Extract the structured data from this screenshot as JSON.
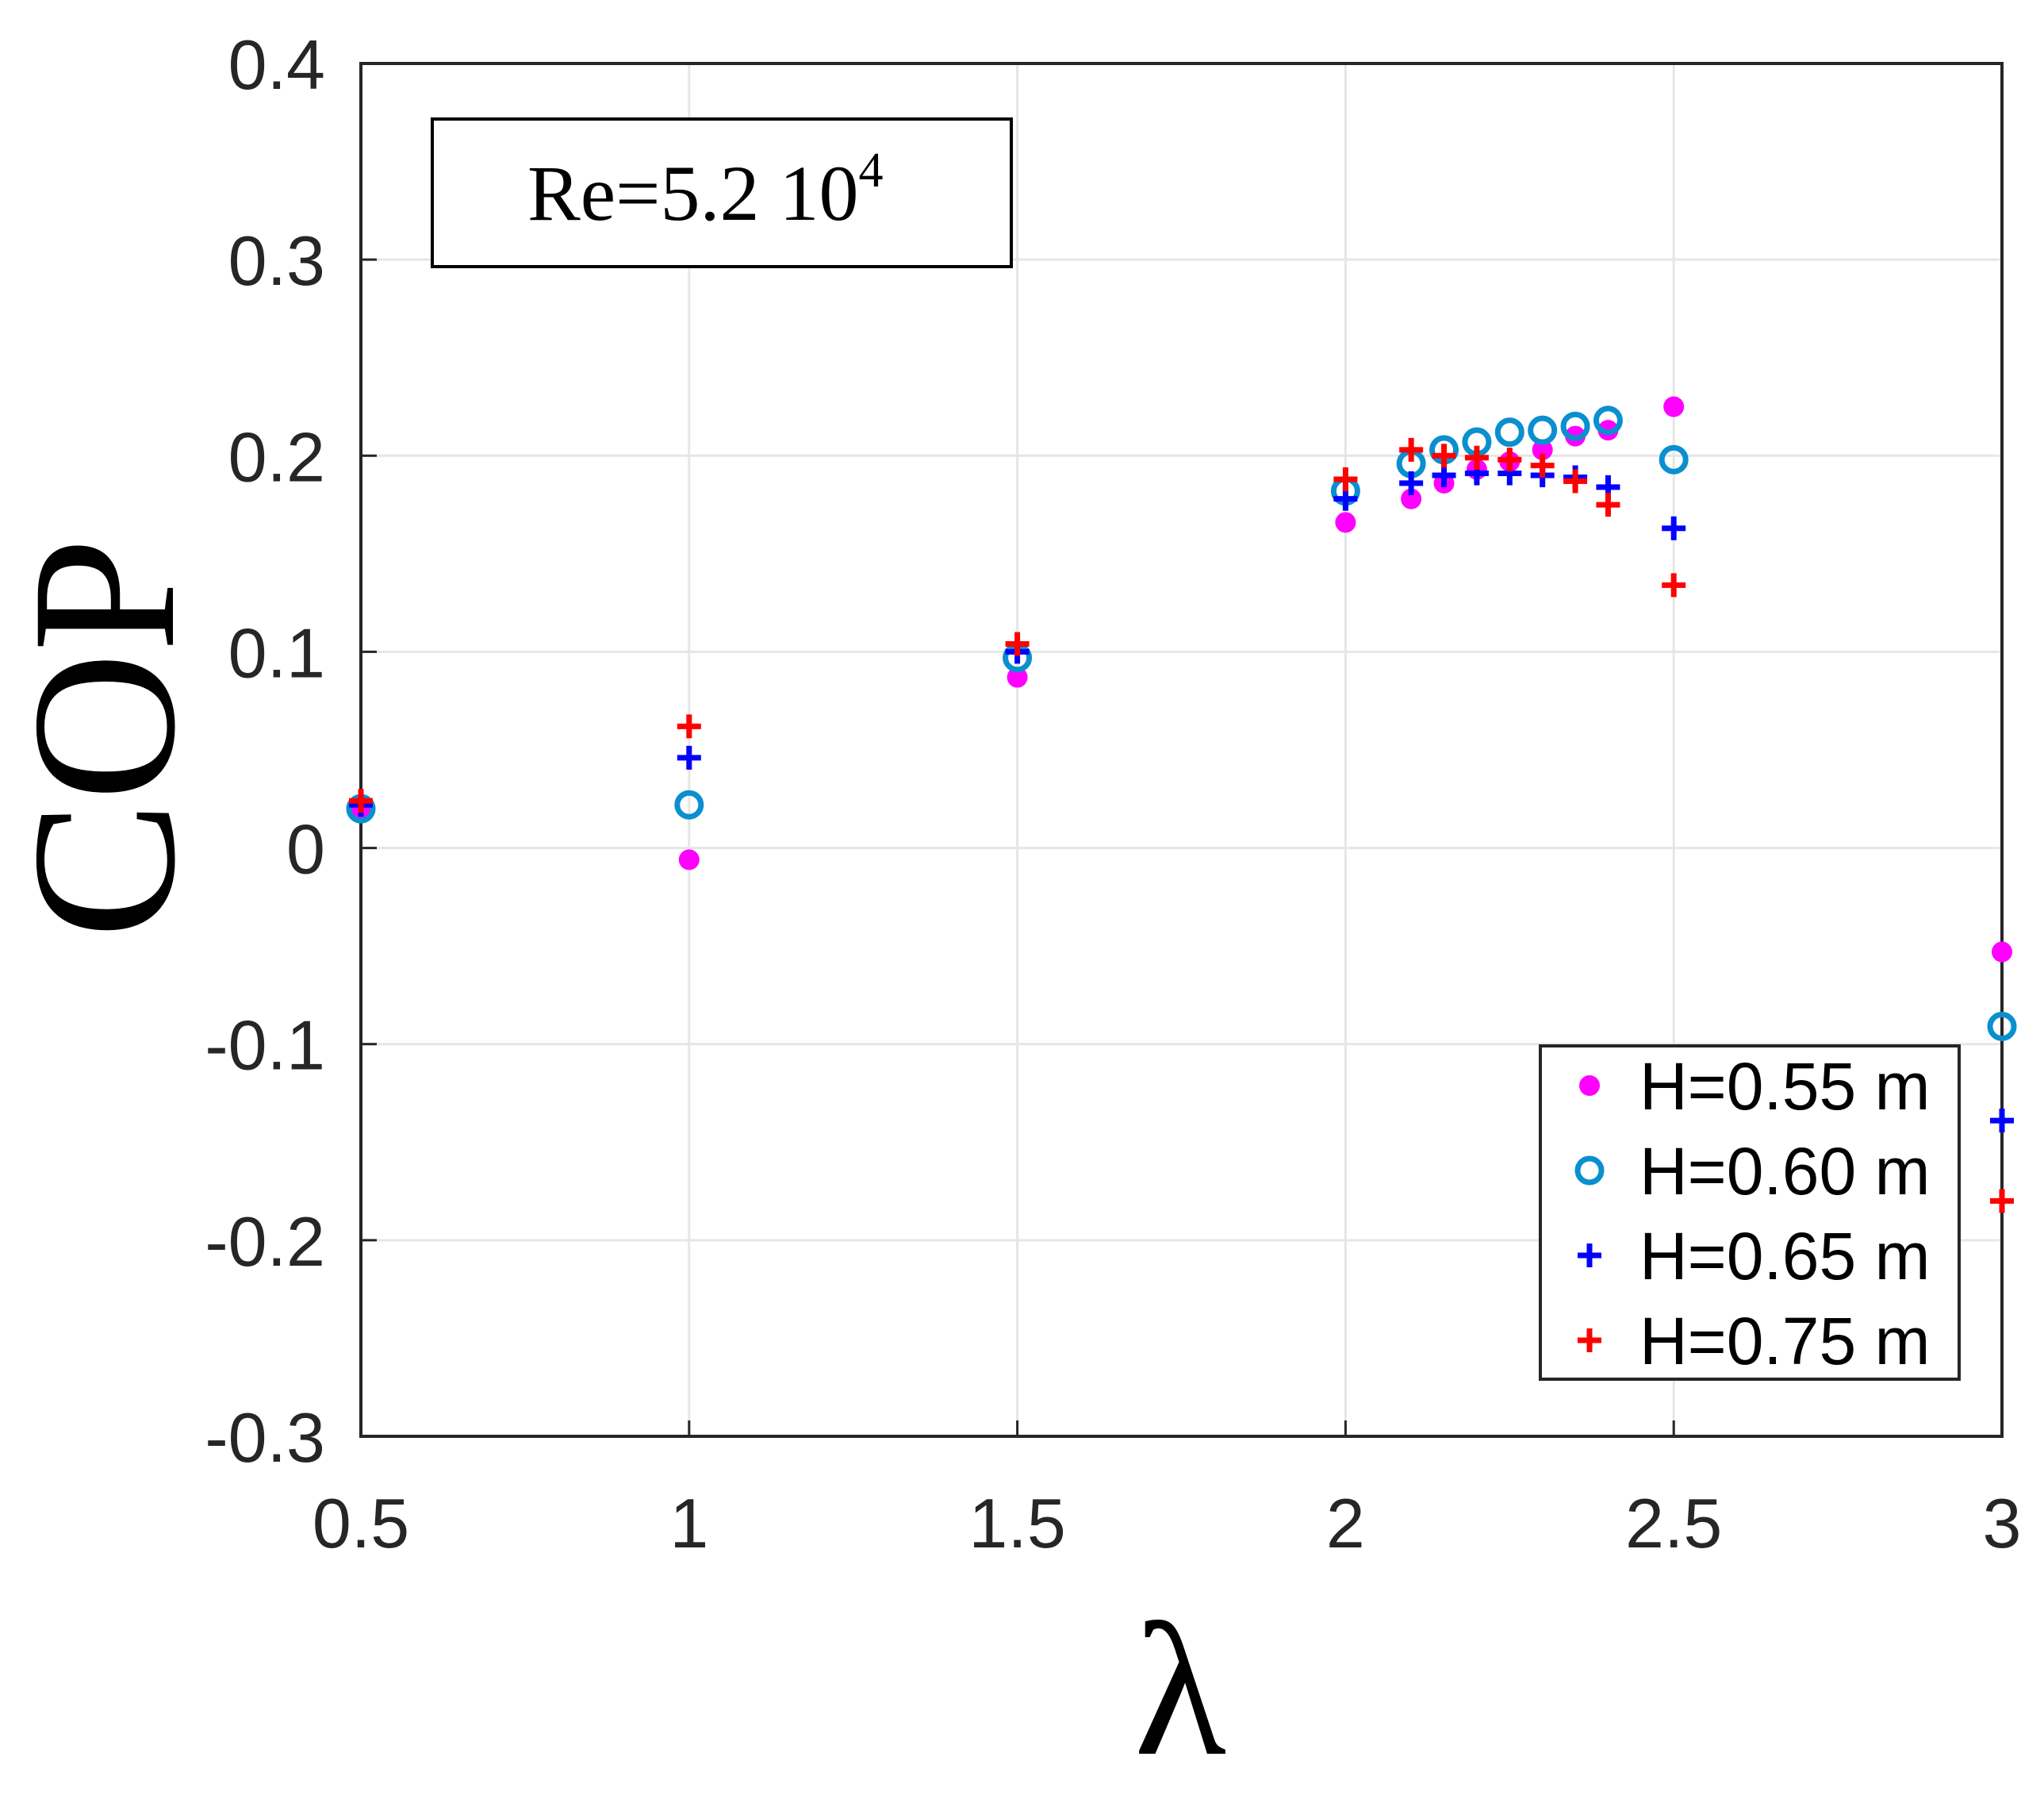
{
  "chart_data": {
    "type": "scatter",
    "title": "",
    "xlabel": "λ",
    "ylabel": "COP",
    "xlim": [
      0.5,
      3
    ],
    "ylim": [
      -0.3,
      0.4
    ],
    "xticks": [
      0.5,
      1,
      1.5,
      2,
      2.5,
      3
    ],
    "yticks": [
      -0.3,
      -0.2,
      -0.1,
      0,
      0.1,
      0.2,
      0.3,
      0.4
    ],
    "xtick_labels": [
      "0.5",
      "1",
      "1.5",
      "2",
      "2.5",
      "3"
    ],
    "ytick_labels": [
      "-0.3",
      "-0.2",
      "-0.1",
      "0",
      "0.1",
      "0.2",
      "0.3",
      "0.4"
    ],
    "grid": true,
    "annotation": {
      "text": "Re=5.2 10",
      "superscript": "4",
      "position": "top-left"
    },
    "legend": {
      "position": "bottom-right"
    },
    "series": [
      {
        "name": "H=0.55 m",
        "marker": "dot",
        "color": "#ff00ff",
        "x": [
          0.5,
          1,
          1.5,
          2,
          2.1,
          2.15,
          2.2,
          2.25,
          2.3,
          2.35,
          2.4,
          2.5,
          3
        ],
        "y": [
          0.02,
          -0.006,
          0.087,
          0.166,
          0.178,
          0.186,
          0.193,
          0.197,
          0.203,
          0.21,
          0.213,
          0.225,
          -0.053
        ]
      },
      {
        "name": "H=0.60 m",
        "marker": "circle",
        "color": "#0a8fcf",
        "x": [
          0.5,
          1,
          1.5,
          2,
          2.1,
          2.15,
          2.2,
          2.25,
          2.3,
          2.35,
          2.4,
          2.5,
          3
        ],
        "y": [
          0.02,
          0.022,
          0.097,
          0.182,
          0.196,
          0.203,
          0.207,
          0.212,
          0.213,
          0.215,
          0.218,
          0.198,
          -0.091
        ]
      },
      {
        "name": "H=0.65 m",
        "marker": "plus",
        "color": "#0000ff",
        "x": [
          0.5,
          1,
          1.5,
          2,
          2.1,
          2.15,
          2.2,
          2.25,
          2.3,
          2.35,
          2.4,
          2.5,
          3
        ],
        "y": [
          0.022,
          0.046,
          0.1,
          0.178,
          0.186,
          0.19,
          0.191,
          0.191,
          0.19,
          0.189,
          0.184,
          0.163,
          -0.139
        ]
      },
      {
        "name": "H=0.75 m",
        "marker": "plus",
        "color": "#ff0000",
        "x": [
          0.5,
          1,
          1.5,
          2,
          2.1,
          2.15,
          2.2,
          2.25,
          2.3,
          2.35,
          2.4,
          2.5,
          3
        ],
        "y": [
          0.024,
          0.062,
          0.104,
          0.188,
          0.203,
          0.2,
          0.199,
          0.198,
          0.195,
          0.187,
          0.175,
          0.134,
          -0.18
        ]
      }
    ]
  }
}
